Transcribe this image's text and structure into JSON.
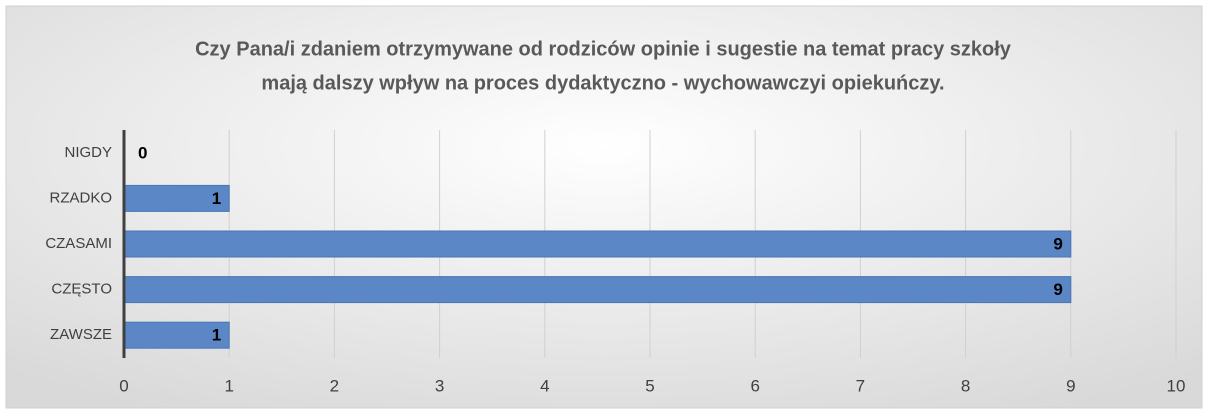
{
  "chart_data": {
    "type": "bar",
    "orientation": "horizontal",
    "title": [
      "Czy Pana/i zdaniem otrzymywane od rodziców opinie i sugestie na temat pracy szkoły",
      "mają dalszy wpływ na proces dydaktyczno - wychowawczyi opiekuńczy."
    ],
    "categories": [
      "NIGDY",
      "RZADKO",
      "CZASAMI",
      "CZĘSTO",
      "ZAWSZE"
    ],
    "values": [
      0,
      1,
      9,
      9,
      1
    ],
    "color": "#5b87c6",
    "xlim": [
      0,
      10
    ],
    "xticks": [
      0,
      1,
      2,
      3,
      4,
      5,
      6,
      7,
      8,
      9,
      10
    ],
    "grid": true
  }
}
